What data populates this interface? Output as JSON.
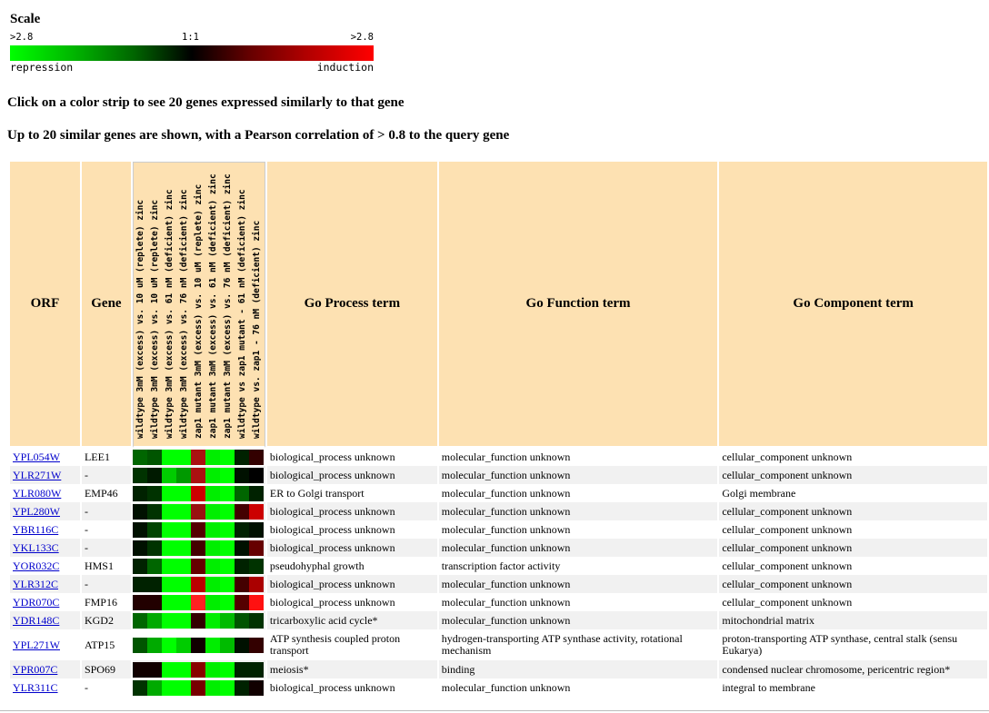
{
  "scale": {
    "title": "Scale",
    "left_tick": ">2.8",
    "mid_tick": "1:1",
    "right_tick": ">2.8",
    "repression_label": "repression",
    "induction_label": "induction",
    "colors": {
      "repression": "#00ff00",
      "neutral": "#000000",
      "induction": "#ff0000"
    }
  },
  "instructions": {
    "line1": "Click on a color strip to see 20 genes expressed similarly to that gene",
    "line2": "Up to 20 similar genes are shown, with a Pearson correlation of > 0.8 to the query gene"
  },
  "table": {
    "headers": {
      "orf": "ORF",
      "gene": "Gene",
      "process": "Go Process term",
      "function": "Go Function term",
      "component": "Go Component term"
    },
    "conditions": [
      "wildtype 3mM (excess) vs. 10 uM (replete) zinc",
      "wildtype 3mM (excess) vs. 10 uM (replete) zinc",
      "wildtype 3mM (excess) vs. 61 nM (deficient) zinc",
      "wildtype 3mM (excess) vs. 76 nM (deficient) zinc",
      "zap1 mutant 3mM (excess) vs. 10 uM (replete) zinc",
      "zap1 mutant 3mM (excess) vs. 61 nM (deficient) zinc",
      "zap1 mutant 3mM (excess) vs. 76 nM (deficient) zinc",
      "wildtype vs zap1 mutant - 61 nM (deficient) zinc",
      "wildtype vs. zap1 - 76 nM (deficient) zinc"
    ],
    "rows": [
      {
        "orf": "YPL054W",
        "gene": "LEE1",
        "process": "biological_process unknown",
        "function": "molecular_function unknown",
        "component": "cellular_component unknown",
        "strip": [
          "#006600",
          "#005500",
          "#00ff00",
          "#00ff00",
          "#aa1111",
          "#00ee00",
          "#00ff00",
          "#002200",
          "#330000"
        ]
      },
      {
        "orf": "YLR271W",
        "gene": "-",
        "process": "biological_process unknown",
        "function": "molecular_function unknown",
        "component": "cellular_component unknown",
        "strip": [
          "#003300",
          "#001a00",
          "#00cc00",
          "#009900",
          "#aa1111",
          "#00ee00",
          "#00ff00",
          "#001100",
          "#000000"
        ]
      },
      {
        "orf": "YLR080W",
        "gene": "EMP46",
        "process": "ER to Golgi transport",
        "function": "molecular_function unknown",
        "component": "Golgi membrane",
        "strip": [
          "#002200",
          "#003300",
          "#00ff00",
          "#00ff00",
          "#cc0000",
          "#00ee00",
          "#00ff00",
          "#006600",
          "#002200"
        ]
      },
      {
        "orf": "YPL280W",
        "gene": "-",
        "process": "biological_process unknown",
        "function": "molecular_function unknown",
        "component": "cellular_component unknown",
        "strip": [
          "#001100",
          "#003300",
          "#00ff00",
          "#00ff00",
          "#991111",
          "#00ee00",
          "#00ff00",
          "#440000",
          "#cc0000"
        ]
      },
      {
        "orf": "YBR116C",
        "gene": "-",
        "process": "biological_process unknown",
        "function": "molecular_function unknown",
        "component": "cellular_component unknown",
        "strip": [
          "#001100",
          "#004400",
          "#00ff00",
          "#00ff00",
          "#550000",
          "#00ee00",
          "#00ff00",
          "#002200",
          "#001100"
        ]
      },
      {
        "orf": "YKL133C",
        "gene": "-",
        "process": "biological_process unknown",
        "function": "molecular_function unknown",
        "component": "cellular_component unknown",
        "strip": [
          "#001100",
          "#003300",
          "#00ff00",
          "#00ff00",
          "#440000",
          "#00ee00",
          "#00ff00",
          "#001100",
          "#660000"
        ]
      },
      {
        "orf": "YOR032C",
        "gene": "HMS1",
        "process": "pseudohyphal growth",
        "function": "transcription factor activity",
        "component": "cellular_component unknown",
        "strip": [
          "#002200",
          "#006600",
          "#00ff00",
          "#00ff00",
          "#660000",
          "#00ee00",
          "#00ff00",
          "#002200",
          "#003300"
        ]
      },
      {
        "orf": "YLR312C",
        "gene": "-",
        "process": "biological_process unknown",
        "function": "molecular_function unknown",
        "component": "cellular_component unknown",
        "strip": [
          "#002200",
          "#002200",
          "#00ff00",
          "#00ff00",
          "#bb0000",
          "#00ee00",
          "#00ff00",
          "#440000",
          "#aa0000"
        ]
      },
      {
        "orf": "YDR070C",
        "gene": "FMP16",
        "process": "biological_process unknown",
        "function": "molecular_function unknown",
        "component": "cellular_component unknown",
        "strip": [
          "#220000",
          "#220000",
          "#00ff00",
          "#00ff00",
          "#ff2222",
          "#00ee00",
          "#00ff00",
          "#550000",
          "#ff1111"
        ]
      },
      {
        "orf": "YDR148C",
        "gene": "KGD2",
        "process": "tricarboxylic acid cycle*",
        "function": "molecular_function unknown",
        "component": "mitochondrial matrix",
        "strip": [
          "#006600",
          "#00aa00",
          "#00ff00",
          "#00ff00",
          "#330000",
          "#00ee00",
          "#00bb00",
          "#005500",
          "#003300"
        ]
      },
      {
        "orf": "YPL271W",
        "gene": "ATP15",
        "process": "ATP synthesis coupled proton transport",
        "function": "hydrogen-transporting ATP synthase activity, rotational mechanism",
        "component": "proton-transporting ATP synthase, central stalk (sensu Eukarya)",
        "strip": [
          "#005500",
          "#00aa00",
          "#00ff00",
          "#00cc00",
          "#110000",
          "#00ee00",
          "#00bb00",
          "#001100",
          "#330000"
        ]
      },
      {
        "orf": "YPR007C",
        "gene": "SPO69",
        "process": "meiosis*",
        "function": "binding",
        "component": "condensed nuclear chromosome, pericentric region*",
        "strip": [
          "#110000",
          "#110000",
          "#00ff00",
          "#00ff00",
          "#880000",
          "#00ee00",
          "#00ff00",
          "#002200",
          "#002200"
        ]
      },
      {
        "orf": "YLR311C",
        "gene": "-",
        "process": "biological_process unknown",
        "function": "molecular_function unknown",
        "component": "integral to membrane",
        "strip": [
          "#003300",
          "#00aa00",
          "#00ff00",
          "#00ff00",
          "#770000",
          "#00ee00",
          "#00ff00",
          "#002200",
          "#110000"
        ]
      }
    ]
  }
}
